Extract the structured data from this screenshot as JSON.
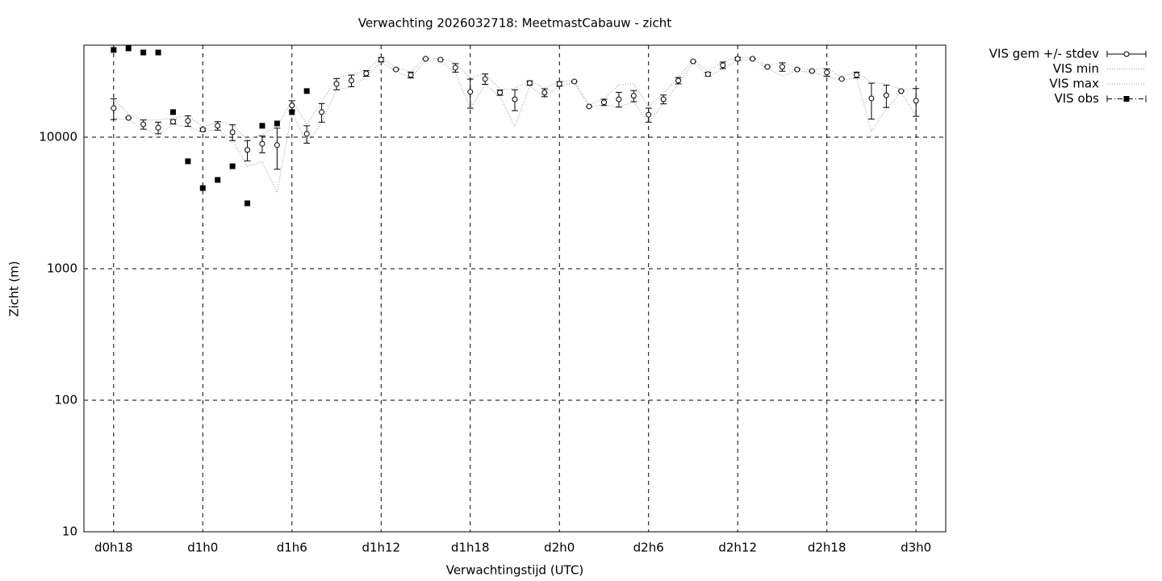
{
  "chart_data": {
    "type": "errorbar",
    "title": "Verwachting 2026032718: MeetmastCabauw - zicht",
    "x_label": "Verwachtingstijd (UTC)",
    "y_label": "Zicht (m)",
    "log_y": true,
    "grid": true,
    "legend": "outside-right",
    "xlim": [
      16,
      74
    ],
    "ylim": [
      10,
      50000
    ],
    "xticks": [
      {
        "value": 18,
        "label": "d0h18"
      },
      {
        "value": 24,
        "label": "d1h0"
      },
      {
        "value": 30,
        "label": "d1h6"
      },
      {
        "value": 36,
        "label": "d1h12"
      },
      {
        "value": 42,
        "label": "d1h18"
      },
      {
        "value": 48,
        "label": "d2h0"
      },
      {
        "value": 54,
        "label": "d2h6"
      },
      {
        "value": 60,
        "label": "d2h12"
      },
      {
        "value": 66,
        "label": "d2h18"
      },
      {
        "value": 72,
        "label": "d3h0"
      }
    ],
    "yticks": [
      10,
      100,
      1000,
      10000
    ],
    "x": [
      18,
      19,
      20,
      21,
      22,
      23,
      24,
      25,
      26,
      27,
      28,
      29,
      30,
      31,
      32,
      33,
      34,
      35,
      36,
      37,
      38,
      39,
      40,
      41,
      42,
      43,
      44,
      45,
      46,
      47,
      48,
      49,
      50,
      51,
      52,
      53,
      54,
      55,
      56,
      57,
      58,
      59,
      60,
      61,
      62,
      63,
      64,
      65,
      66,
      67,
      68,
      69,
      70,
      71,
      72
    ],
    "series": [
      {
        "name": "VIS gem +/- stdev",
        "color": "#000000",
        "values": [
          16600,
          14000,
          12500,
          11800,
          13100,
          13300,
          11400,
          12200,
          10900,
          8000,
          8900,
          8700,
          17400,
          10600,
          15500,
          25400,
          26900,
          30500,
          38800,
          32700,
          29700,
          39400,
          38800,
          33700,
          22100,
          27700,
          21800,
          19400,
          25800,
          21800,
          25400,
          26500,
          17100,
          18400,
          19400,
          20600,
          14800,
          19400,
          26900,
          37700,
          30100,
          35200,
          39400,
          39400,
          34200,
          34200,
          32700,
          31800,
          31000,
          27700,
          29700,
          19700,
          20800,
          22400,
          18900
        ],
        "errors": [
          3000,
          0,
          1000,
          1200,
          500,
          1200,
          300,
          900,
          1500,
          1400,
          1300,
          3000,
          1500,
          1600,
          2500,
          2500,
          2700,
          1500,
          1500,
          0,
          1500,
          0,
          0,
          2500,
          5500,
          2500,
          1000,
          3500,
          1000,
          1500,
          1000,
          0,
          0,
          1000,
          2500,
          2000,
          1800,
          1500,
          1500,
          0,
          1000,
          2000,
          1000,
          0,
          0,
          2500,
          0,
          0,
          2000,
          0,
          1500,
          6000,
          4000,
          0,
          4500
        ]
      },
      {
        "name": "VIS min",
        "color": "#999999",
        "values": [
          14000,
          13500,
          11500,
          10500,
          12500,
          12000,
          11000,
          11500,
          9500,
          6000,
          6500,
          3800,
          15500,
          9000,
          13000,
          23000,
          24000,
          29000,
          37000,
          32000,
          28000,
          38500,
          38000,
          31000,
          16500,
          25000,
          20500,
          12000,
          24500,
          20000,
          24500,
          26000,
          17000,
          17500,
          17000,
          18500,
          13000,
          18000,
          25500,
          37000,
          29000,
          33000,
          38500,
          39000,
          33500,
          29000,
          32000,
          31000,
          29000,
          27000,
          28500,
          11000,
          16500,
          22000,
          14500
        ]
      },
      {
        "name": "VIS max",
        "color": "#999999",
        "values": [
          19500,
          15000,
          13500,
          13500,
          14000,
          14500,
          12000,
          13000,
          12500,
          9500,
          10500,
          12000,
          19000,
          12500,
          18500,
          28000,
          30000,
          32000,
          40500,
          33500,
          31500,
          40000,
          39500,
          36500,
          28000,
          30500,
          23000,
          23500,
          27000,
          23500,
          26500,
          27000,
          17500,
          19500,
          25000,
          25500,
          17000,
          21500,
          28500,
          38500,
          31500,
          37500,
          40500,
          40000,
          35000,
          37000,
          33500,
          32500,
          33500,
          28500,
          31500,
          26000,
          25500,
          23000,
          23500
        ]
      },
      {
        "name": "VIS obs",
        "color": "#000000",
        "values": [
          46000,
          47300,
          44000,
          44000,
          15500,
          6550,
          4100,
          4730,
          6010,
          3140,
          12200,
          12700,
          15500,
          22400,
          null,
          null,
          null,
          null,
          null,
          null,
          null,
          null,
          null,
          null,
          null,
          null,
          null,
          null,
          null,
          null,
          null,
          null,
          null,
          null,
          null,
          null,
          null,
          null,
          null,
          null,
          null,
          null,
          null,
          null,
          null,
          null,
          null,
          null,
          null,
          null,
          null,
          null,
          null,
          null,
          null
        ]
      }
    ]
  }
}
